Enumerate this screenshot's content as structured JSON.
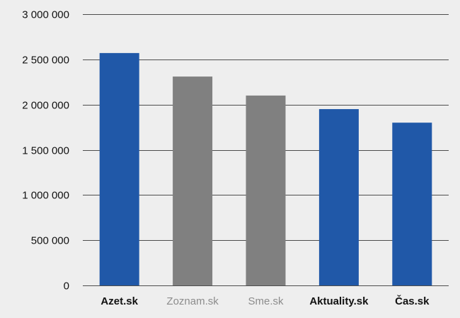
{
  "chart_data": {
    "type": "bar",
    "title": "",
    "xlabel": "",
    "ylabel": "",
    "ylim": [
      0,
      3000000
    ],
    "yticks": [
      0,
      500000,
      1000000,
      1500000,
      2000000,
      2500000,
      3000000
    ],
    "ytick_labels": [
      "0",
      "500 000",
      "1 000 000",
      "1 500 000",
      "2 000 000",
      "2 500 000",
      "3 000 000"
    ],
    "grid": true,
    "categories": [
      "Azet.sk",
      "Zoznam.sk",
      "Sme.sk",
      "Aktuality.sk",
      "Čas.sk"
    ],
    "values": [
      2570000,
      2310000,
      2100000,
      1950000,
      1800000
    ],
    "bar_colors": [
      "#2058a8",
      "#808080",
      "#808080",
      "#2058a8",
      "#2058a8"
    ],
    "label_colors": [
      "#111111",
      "#8c8c8c",
      "#8c8c8c",
      "#111111",
      "#111111"
    ],
    "label_weights": [
      "bold",
      "normal",
      "normal",
      "bold",
      "bold"
    ]
  },
  "colors": {
    "background": "#eeeeee",
    "grid": "#4d4d4d"
  }
}
